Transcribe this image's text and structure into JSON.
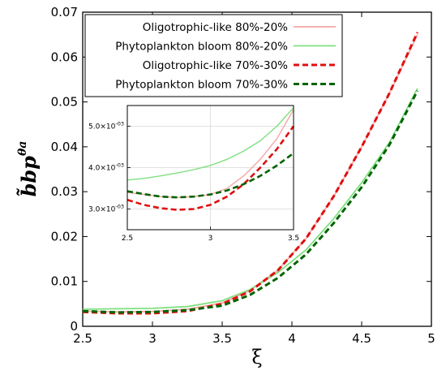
{
  "chart_data": {
    "type": "line",
    "xlabel": "ξ",
    "ylabel": "b̃bp",
    "ylabel_superscript": "θa",
    "xlim": [
      2.5,
      5
    ],
    "ylim": [
      0,
      0.07
    ],
    "xticks": [
      "2.5",
      "3",
      "3.5",
      "4",
      "4.5",
      "5"
    ],
    "yticks": [
      "0",
      "0.01",
      "0.02",
      "0.03",
      "0.04",
      "0.05",
      "0.06",
      "0.07"
    ],
    "grid": false,
    "legend": "top-center",
    "series": [
      {
        "name": "Oligotrophic-like 80%-20%",
        "color": "#f4a6a6",
        "style": "solid",
        "x": [
          2.5,
          2.75,
          3.0,
          3.25,
          3.5,
          3.7,
          3.9,
          4.1,
          4.3,
          4.5,
          4.7,
          4.9
        ],
        "y": [
          0.0034,
          0.0032,
          0.0033,
          0.0038,
          0.0052,
          0.008,
          0.0125,
          0.0195,
          0.029,
          0.04,
          0.052,
          0.065
        ]
      },
      {
        "name": "Phytoplankton bloom 80%-20%",
        "color": "#7fe07f",
        "style": "solid",
        "x": [
          2.5,
          2.75,
          3.0,
          3.25,
          3.5,
          3.7,
          3.9,
          4.1,
          4.3,
          4.5,
          4.7,
          4.9
        ],
        "y": [
          0.0038,
          0.0039,
          0.004,
          0.0044,
          0.0057,
          0.0082,
          0.012,
          0.017,
          0.024,
          0.032,
          0.041,
          0.053
        ]
      },
      {
        "name": "Oligotrophic-like 70%-30%",
        "color": "#e01010",
        "style": "dashed",
        "x": [
          2.5,
          2.75,
          3.0,
          3.25,
          3.5,
          3.7,
          3.9,
          4.1,
          4.3,
          4.5,
          4.7,
          4.9
        ],
        "y": [
          0.0032,
          0.0029,
          0.0029,
          0.0034,
          0.005,
          0.0078,
          0.0125,
          0.0195,
          0.029,
          0.04,
          0.052,
          0.0655
        ]
      },
      {
        "name": "Phytoplankton bloom 70%-30%",
        "color": "#006400",
        "style": "dashed",
        "x": [
          2.5,
          2.75,
          3.0,
          3.25,
          3.5,
          3.7,
          3.9,
          4.1,
          4.3,
          4.5,
          4.7,
          4.9
        ],
        "y": [
          0.0034,
          0.0031,
          0.0032,
          0.0036,
          0.0046,
          0.007,
          0.0108,
          0.016,
          0.023,
          0.031,
          0.0405,
          0.0525
        ]
      }
    ],
    "inset": {
      "xlim": [
        2.5,
        3.5
      ],
      "ylim": [
        0.0025,
        0.0055
      ],
      "xticks": [
        "2.5",
        "3",
        "3.5"
      ],
      "yticks": [
        {
          "value": 0.003,
          "mantissa": "3.0",
          "exponent": "-03"
        },
        {
          "value": 0.004,
          "mantissa": "4.0",
          "exponent": "-03"
        },
        {
          "value": 0.005,
          "mantissa": "5.0",
          "exponent": "-03"
        }
      ],
      "grid": true,
      "series": [
        {
          "x": [
            2.5,
            2.6,
            2.7,
            2.8,
            2.9,
            3.0,
            3.1,
            3.2,
            3.3,
            3.4,
            3.5
          ],
          "y": [
            0.0034,
            0.00335,
            0.0033,
            0.00328,
            0.0033,
            0.00335,
            0.0035,
            0.0038,
            0.0042,
            0.0047,
            0.0054
          ]
        },
        {
          "x": [
            2.5,
            2.6,
            2.7,
            2.8,
            2.9,
            3.0,
            3.1,
            3.2,
            3.3,
            3.4,
            3.5
          ],
          "y": [
            0.0037,
            0.00374,
            0.0038,
            0.00387,
            0.00395,
            0.00405,
            0.0042,
            0.0044,
            0.00465,
            0.005,
            0.00545
          ]
        },
        {
          "x": [
            2.5,
            2.6,
            2.7,
            2.8,
            2.9,
            3.0,
            3.1,
            3.2,
            3.3,
            3.4,
            3.5
          ],
          "y": [
            0.00322,
            0.0031,
            0.00302,
            0.00298,
            0.003,
            0.0031,
            0.0033,
            0.0036,
            0.004,
            0.00445,
            0.005
          ]
        },
        {
          "x": [
            2.5,
            2.6,
            2.7,
            2.8,
            2.9,
            3.0,
            3.1,
            3.2,
            3.3,
            3.4,
            3.5
          ],
          "y": [
            0.00343,
            0.00336,
            0.0033,
            0.00328,
            0.0033,
            0.00335,
            0.00345,
            0.0036,
            0.0038,
            0.00405,
            0.00435
          ]
        }
      ]
    }
  }
}
